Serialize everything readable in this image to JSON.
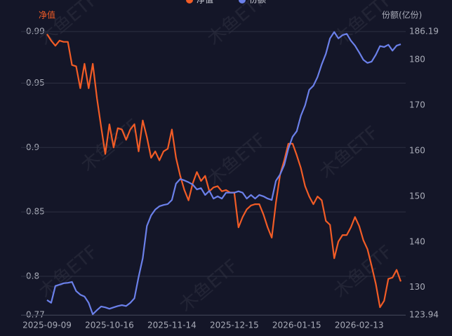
{
  "chart_data": {
    "type": "line",
    "watermark": "木鱼ETF",
    "y_title": "净值",
    "y2_title": "份额(亿份)",
    "categories": [
      "2025-09-09",
      null,
      null,
      null,
      null,
      null,
      null,
      null,
      null,
      null,
      null,
      null,
      null,
      null,
      null,
      "2025-10-16",
      null,
      null,
      null,
      null,
      null,
      null,
      null,
      null,
      null,
      null,
      null,
      null,
      null,
      null,
      "2025-11-14",
      null,
      null,
      null,
      null,
      null,
      null,
      null,
      null,
      null,
      null,
      null,
      null,
      null,
      null,
      "2025-12-15",
      null,
      null,
      null,
      null,
      null,
      null,
      null,
      null,
      null,
      null,
      null,
      null,
      null,
      null,
      "2026-01-15",
      null,
      null,
      null,
      null,
      null,
      null,
      null,
      null,
      null,
      null,
      null,
      null,
      null,
      null,
      "2026-02-13",
      null,
      null,
      null,
      null,
      null,
      null,
      null,
      null,
      null,
      null
    ],
    "series": [
      {
        "name": "净值",
        "color": "#f25c26",
        "axis": "y",
        "values": [
          0.988,
          0.983,
          0.979,
          0.983,
          0.982,
          0.982,
          0.964,
          0.963,
          0.946,
          0.965,
          0.946,
          0.965,
          0.938,
          0.916,
          0.895,
          0.918,
          0.9,
          0.915,
          0.914,
          0.906,
          0.914,
          0.918,
          0.897,
          0.921,
          0.908,
          0.892,
          0.897,
          0.89,
          0.897,
          0.899,
          0.914,
          0.892,
          0.878,
          0.867,
          0.859,
          0.872,
          0.881,
          0.874,
          0.878,
          0.866,
          0.869,
          0.87,
          0.866,
          0.867,
          0.865,
          0.865,
          0.838,
          0.846,
          0.852,
          0.855,
          0.856,
          0.856,
          0.848,
          0.838,
          0.83,
          0.857,
          0.879,
          0.89,
          0.903,
          0.903,
          0.894,
          0.884,
          0.87,
          0.862,
          0.856,
          0.862,
          0.859,
          0.843,
          0.84,
          0.814,
          0.827,
          0.832,
          0.832,
          0.838,
          0.846,
          0.839,
          0.828,
          0.821,
          0.808,
          0.794,
          0.776,
          0.781,
          0.798,
          0.799,
          0.805,
          0.796
        ]
      },
      {
        "name": "份额",
        "color": "#6b80ea",
        "axis": "y2",
        "values": [
          127.2,
          126.6,
          130.3,
          130.6,
          130.9,
          131.0,
          131.2,
          129.2,
          128.4,
          128.0,
          126.6,
          124.1,
          125.0,
          125.8,
          125.6,
          125.3,
          125.6,
          125.9,
          126.1,
          125.9,
          126.6,
          127.6,
          132.3,
          136.4,
          143.5,
          145.8,
          147.1,
          147.8,
          148.1,
          148.3,
          149.2,
          152.8,
          153.8,
          153.5,
          153.1,
          152.6,
          151.5,
          151.8,
          150.3,
          151.2,
          149.5,
          150.0,
          149.5,
          150.8,
          150.8,
          150.8,
          151.1,
          150.8,
          149.5,
          150.3,
          149.5,
          150.3,
          150.0,
          149.5,
          149.2,
          153.4,
          154.8,
          156.9,
          160.5,
          163.1,
          164.3,
          167.7,
          170.0,
          173.4,
          174.3,
          176.2,
          179.0,
          181.3,
          184.7,
          186.1,
          184.7,
          185.4,
          185.7,
          184.2,
          183.1,
          181.6,
          180.0,
          179.3,
          179.6,
          181.1,
          183.0,
          182.8,
          183.3,
          182.0,
          183.1,
          183.4
        ]
      }
    ],
    "ylim": [
      0.77,
      0.99
    ],
    "yticks": [
      0.77,
      0.8,
      0.85,
      0.9,
      0.95,
      0.99
    ],
    "y2lim": [
      123.94,
      186.19
    ],
    "y2ticks": [
      123.94,
      130,
      140,
      150,
      160,
      170,
      180,
      186.19
    ],
    "grid": true
  }
}
